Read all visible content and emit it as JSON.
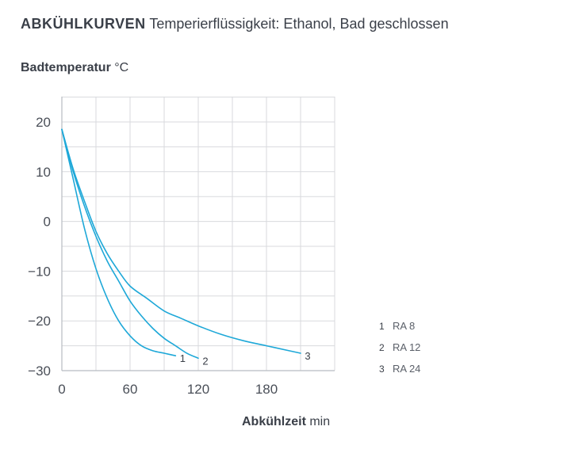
{
  "header": {
    "title_strong": "ABKÜHLKURVEN",
    "title_rest": "Temperierflüssigkeit: Ethanol, Bad geschlossen"
  },
  "axes": {
    "ylabel_strong": "Badtemperatur",
    "ylabel_unit": "°C",
    "xlabel_strong": "Abkühlzeit",
    "xlabel_unit": "min"
  },
  "colors": {
    "curve": "#1ea8d8",
    "grid": "#d8dadd",
    "axis": "#b8bcc2"
  },
  "chart_data": {
    "type": "line",
    "xlim": [
      0,
      240
    ],
    "ylim": [
      -30,
      25
    ],
    "x_ticks": [
      0,
      60,
      120,
      180
    ],
    "x_tick_labels": [
      "0",
      "60",
      "120",
      "180"
    ],
    "y_ticks": [
      20,
      10,
      0,
      -10,
      -20,
      -30
    ],
    "y_tick_labels": [
      "20",
      "10",
      "0",
      "−10",
      "−20",
      "−30"
    ],
    "x_grid_step": 30,
    "y_grid_step": 5,
    "grid": true,
    "legend_position": "right",
    "series": [
      {
        "name": "RA 8",
        "number": "1",
        "x": [
          0,
          10,
          20,
          30,
          40,
          50,
          60,
          70,
          80,
          90,
          100
        ],
        "y": [
          18.5,
          8.5,
          -1.5,
          -9.5,
          -15.5,
          -20,
          -23,
          -25,
          -26,
          -26.5,
          -27
        ]
      },
      {
        "name": "RA 12",
        "number": "2",
        "x": [
          0,
          10,
          20,
          30,
          40,
          50,
          60,
          70,
          80,
          90,
          100,
          110,
          120
        ],
        "y": [
          18.5,
          10,
          3,
          -3,
          -8,
          -12,
          -16,
          -19,
          -21.5,
          -23.5,
          -25,
          -26.5,
          -27.5
        ]
      },
      {
        "name": "RA 24",
        "number": "3",
        "x": [
          0,
          10,
          20,
          30,
          40,
          50,
          60,
          75,
          90,
          105,
          120,
          140,
          160,
          180,
          200,
          210
        ],
        "y": [
          18.5,
          10.5,
          4,
          -2,
          -6.5,
          -10,
          -13,
          -15.5,
          -18,
          -19.5,
          -21,
          -22.7,
          -24,
          -25,
          -26,
          -26.5
        ]
      }
    ]
  }
}
